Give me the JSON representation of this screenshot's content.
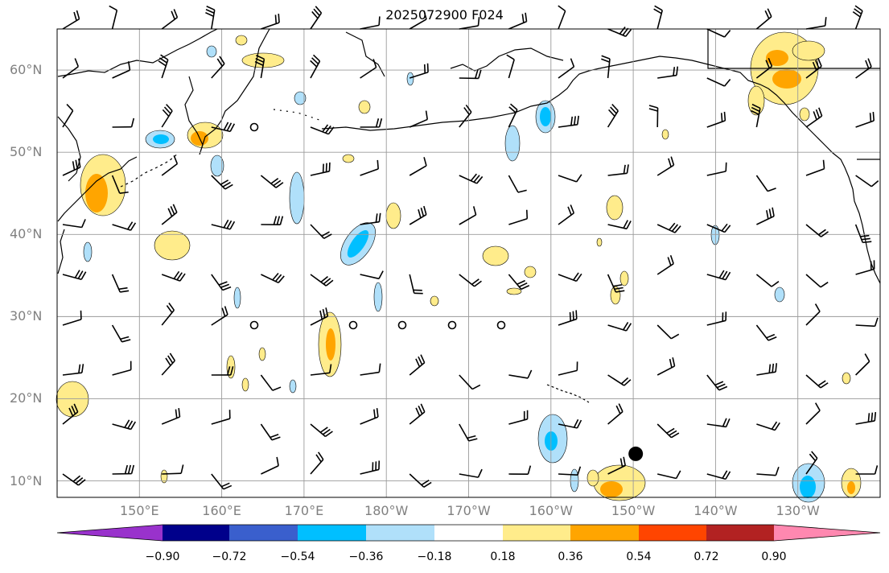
{
  "title": "2025072900 F024",
  "lat_labels": [
    "60°N",
    "50°N",
    "40°N",
    "30°N",
    "20°N",
    "10°N"
  ],
  "lon_labels": [
    "150°E",
    "160°E",
    "170°E",
    "180°W",
    "170°W",
    "160°W",
    "150°W",
    "140°W",
    "130°W"
  ],
  "colorbar": {
    "levels": [
      "−0.90",
      "−0.72",
      "−0.54",
      "−0.36",
      "−0.18",
      "0.18",
      "0.36",
      "0.54",
      "0.72",
      "0.90"
    ],
    "colors": [
      "#9932cc",
      "#00008b",
      "#3a5fcd",
      "#00bfff",
      "#b0e0fa",
      "#ffffff",
      "#ffec8b",
      "#ffa500",
      "#ff4500",
      "#b22222",
      "#ff88b0"
    ]
  },
  "map": {
    "region": "North Pacific",
    "lat_range": [
      8,
      65
    ],
    "lon_range_east": [
      140,
      240
    ],
    "gridlines": true,
    "storm_marker": {
      "lat": 13.3,
      "lon": 210.3
    }
  }
}
